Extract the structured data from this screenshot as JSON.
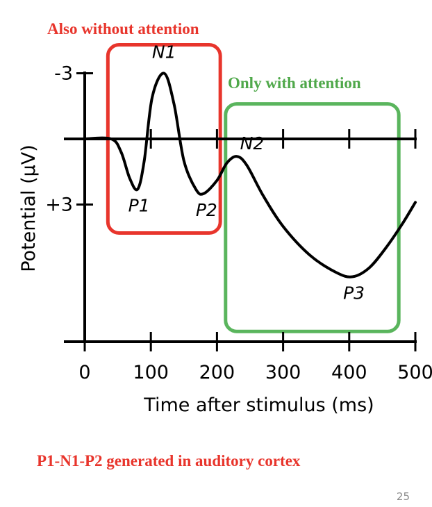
{
  "slide": {
    "top_annotation": "Also without attention",
    "bottom_note": "P1-N1-P2 generated in auditory cortex",
    "page_number": "25"
  },
  "colors": {
    "red": "#e8352c",
    "green": "#5ab55d",
    "red_text": "#e8352c",
    "green_text": "#4fa84a",
    "ink": "#000000",
    "page_number": "#8a8a8a"
  },
  "chart_data": {
    "type": "line",
    "title": "",
    "xlabel": "Time after stimulus (ms)",
    "ylabel": "Potential (µV)",
    "xlim": [
      0,
      500
    ],
    "ylim_display_top_to_bottom": [
      -3,
      7.5
    ],
    "x_ticks": [
      0,
      100,
      200,
      300,
      400,
      500
    ],
    "x_tick_labels": [
      "0",
      "100",
      "200",
      "300",
      "400",
      "500"
    ],
    "y_ticks": [
      -3,
      3
    ],
    "y_tick_labels": [
      "-3",
      "+3"
    ],
    "y_axis_inverted": true,
    "series": [
      {
        "points": [
          [
            0,
            0
          ],
          [
            40,
            0
          ],
          [
            55,
            0.6
          ],
          [
            68,
            1.8
          ],
          [
            80,
            2.3
          ],
          [
            90,
            1.0
          ],
          [
            102,
            -1.9
          ],
          [
            120,
            -3.0
          ],
          [
            135,
            -1.6
          ],
          [
            150,
            1.0
          ],
          [
            168,
            2.3
          ],
          [
            180,
            2.5
          ],
          [
            200,
            1.9
          ],
          [
            215,
            1.1
          ],
          [
            230,
            0.8
          ],
          [
            245,
            1.2
          ],
          [
            270,
            2.6
          ],
          [
            300,
            4.0
          ],
          [
            340,
            5.3
          ],
          [
            380,
            6.1
          ],
          [
            405,
            6.3
          ],
          [
            430,
            5.9
          ],
          [
            455,
            5.0
          ],
          [
            480,
            3.9
          ],
          [
            500,
            2.9
          ]
        ]
      }
    ],
    "annotations": [
      {
        "text": "N1",
        "x": 120,
        "y": -3.0
      },
      {
        "text": "P1",
        "x": 80,
        "y": 2.3
      },
      {
        "text": "P2",
        "x": 180,
        "y": 2.5
      },
      {
        "text": "N2",
        "x": 230,
        "y": 0.8
      },
      {
        "text": "P3",
        "x": 405,
        "y": 6.3
      }
    ],
    "regions": [
      {
        "label": "",
        "color": "red",
        "x_range": [
          35,
          205
        ],
        "y_range": [
          -4.3,
          4.3
        ]
      },
      {
        "label": "Only with attention",
        "color": "green",
        "x_range": [
          213,
          475
        ],
        "y_range": [
          -1.6,
          8.8
        ]
      }
    ],
    "grid": false,
    "legend": "none"
  }
}
